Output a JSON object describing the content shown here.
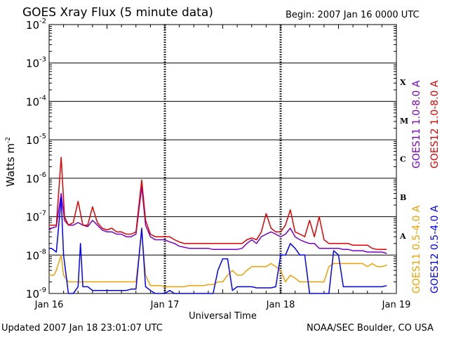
{
  "header": {
    "title": "GOES Xray Flux (5 minute data)",
    "begin": "Begin:  2007 Jan 16 0000 UTC"
  },
  "footer": {
    "updated": "Updated 2007 Jan 18 23:01:07 UTC",
    "credit": "NOAA/SEC Boulder, CO USA"
  },
  "chart_data": {
    "type": "line",
    "title": "GOES Xray Flux (5 minute data)",
    "xlabel": "Universal Time",
    "ylabel": "Watts m-2",
    "yscale": "log",
    "ylim": [
      1e-09,
      0.01
    ],
    "xlim": [
      0,
      72
    ],
    "x_unit": "hours since 2007 Jan 16 0000 UTC",
    "x_ticks": [
      {
        "x": 0,
        "label": "Jan 16"
      },
      {
        "x": 24,
        "label": "Jan 17"
      },
      {
        "x": 48,
        "label": "Jan 18"
      },
      {
        "x": 72,
        "label": "Jan 19"
      }
    ],
    "y_ticks": [
      {
        "exp": -2,
        "label": "10",
        "sup": "-2"
      },
      {
        "exp": -3,
        "label": "10",
        "sup": "-3"
      },
      {
        "exp": -4,
        "label": "10",
        "sup": "-4"
      },
      {
        "exp": -5,
        "label": "10",
        "sup": "-5"
      },
      {
        "exp": -6,
        "label": "10",
        "sup": "-6"
      },
      {
        "exp": -7,
        "label": "10",
        "sup": "-7"
      },
      {
        "exp": -8,
        "label": "10",
        "sup": "-8"
      },
      {
        "exp": -9,
        "label": "10",
        "sup": "-9"
      }
    ],
    "flare_classes": [
      {
        "label": "X",
        "exp": -3.5
      },
      {
        "label": "M",
        "exp": -4.5
      },
      {
        "label": "C",
        "exp": -5.5
      },
      {
        "label": "B",
        "exp": -6.5
      },
      {
        "label": "A",
        "exp": -7.5
      }
    ],
    "grid": true,
    "legend_placement": "right (vertical)",
    "series": [
      {
        "name": "GOES11 1.0-8.0 A",
        "color": "#7a00c8",
        "points": [
          [
            0,
            4.5e-08
          ],
          [
            0.5,
            5e-08
          ],
          [
            1.5,
            5.5e-08
          ],
          [
            2.5,
            4e-07
          ],
          [
            3.2,
            8e-08
          ],
          [
            4,
            6e-08
          ],
          [
            5,
            6e-08
          ],
          [
            6,
            7e-08
          ],
          [
            7,
            6e-08
          ],
          [
            8,
            5.5e-08
          ],
          [
            9,
            8e-08
          ],
          [
            10,
            6e-08
          ],
          [
            11,
            4.5e-08
          ],
          [
            12,
            4e-08
          ],
          [
            13,
            4e-08
          ],
          [
            14,
            3.5e-08
          ],
          [
            15,
            3.5e-08
          ],
          [
            16,
            3e-08
          ],
          [
            17,
            3e-08
          ],
          [
            18,
            3.5e-08
          ],
          [
            19.2,
            6e-07
          ],
          [
            20,
            6e-08
          ],
          [
            21,
            3e-08
          ],
          [
            22,
            2.5e-08
          ],
          [
            23,
            2.5e-08
          ],
          [
            24,
            2.5e-08
          ],
          [
            25,
            2.2e-08
          ],
          [
            26,
            2e-08
          ],
          [
            27,
            1.7e-08
          ],
          [
            28,
            1.6e-08
          ],
          [
            29,
            1.5e-08
          ],
          [
            30,
            1.5e-08
          ],
          [
            31,
            1.5e-08
          ],
          [
            32,
            1.5e-08
          ],
          [
            33,
            1.5e-08
          ],
          [
            34,
            1.4e-08
          ],
          [
            35,
            1.4e-08
          ],
          [
            36,
            1.4e-08
          ],
          [
            37,
            1.4e-08
          ],
          [
            38,
            1.4e-08
          ],
          [
            39,
            1.4e-08
          ],
          [
            40,
            1.5e-08
          ],
          [
            41,
            2e-08
          ],
          [
            42,
            2.5e-08
          ],
          [
            43,
            2e-08
          ],
          [
            44,
            3e-08
          ],
          [
            45,
            3.5e-08
          ],
          [
            46,
            4e-08
          ],
          [
            47,
            3.5e-08
          ],
          [
            48,
            3e-08
          ],
          [
            49,
            3.5e-08
          ],
          [
            50,
            5e-08
          ],
          [
            51,
            3e-08
          ],
          [
            52,
            2.5e-08
          ],
          [
            53,
            2.2e-08
          ],
          [
            54,
            2e-08
          ],
          [
            55,
            2e-08
          ],
          [
            56,
            1.5e-08
          ],
          [
            57,
            1.5e-08
          ],
          [
            58,
            1.5e-08
          ],
          [
            59,
            1.5e-08
          ],
          [
            60,
            1.5e-08
          ],
          [
            61,
            1.4e-08
          ],
          [
            62,
            1.4e-08
          ],
          [
            63,
            1.3e-08
          ],
          [
            64,
            1.3e-08
          ],
          [
            65,
            1.3e-08
          ],
          [
            66,
            1.2e-08
          ],
          [
            67,
            1.2e-08
          ],
          [
            68,
            1.2e-08
          ],
          [
            69,
            1.2e-08
          ],
          [
            70,
            1.1e-08
          ]
        ]
      },
      {
        "name": "GOES12 1.0-8.0 A",
        "color": "#e00000",
        "points": [
          [
            0,
            6e-08
          ],
          [
            0.5,
            6e-08
          ],
          [
            1.5,
            6e-08
          ],
          [
            2.5,
            3.5e-06
          ],
          [
            3.2,
            1e-07
          ],
          [
            4,
            6e-08
          ],
          [
            5,
            7e-08
          ],
          [
            6,
            2.5e-07
          ],
          [
            7,
            6e-08
          ],
          [
            8,
            6e-08
          ],
          [
            9,
            1.8e-07
          ],
          [
            10,
            7e-08
          ],
          [
            11,
            5e-08
          ],
          [
            12,
            4.5e-08
          ],
          [
            13,
            5e-08
          ],
          [
            14,
            4e-08
          ],
          [
            15,
            4e-08
          ],
          [
            16,
            3.5e-08
          ],
          [
            17,
            3.5e-08
          ],
          [
            18,
            4e-08
          ],
          [
            19.2,
            9e-07
          ],
          [
            20,
            8e-08
          ],
          [
            21,
            3.5e-08
          ],
          [
            22,
            3e-08
          ],
          [
            23,
            3e-08
          ],
          [
            24,
            3e-08
          ],
          [
            25,
            3e-08
          ],
          [
            26,
            2.5e-08
          ],
          [
            27,
            2.2e-08
          ],
          [
            28,
            2e-08
          ],
          [
            29,
            2e-08
          ],
          [
            30,
            2e-08
          ],
          [
            31,
            2e-08
          ],
          [
            32,
            2e-08
          ],
          [
            33,
            2e-08
          ],
          [
            34,
            2e-08
          ],
          [
            35,
            2e-08
          ],
          [
            36,
            2e-08
          ],
          [
            37,
            2e-08
          ],
          [
            38,
            2e-08
          ],
          [
            39,
            2e-08
          ],
          [
            40,
            2e-08
          ],
          [
            41,
            2.5e-08
          ],
          [
            42,
            2.8e-08
          ],
          [
            43,
            2.5e-08
          ],
          [
            44,
            4e-08
          ],
          [
            45,
            1.2e-07
          ],
          [
            46,
            5e-08
          ],
          [
            47,
            4e-08
          ],
          [
            48,
            4e-08
          ],
          [
            49,
            6e-08
          ],
          [
            50,
            1.5e-07
          ],
          [
            51,
            4e-08
          ],
          [
            52,
            3.5e-08
          ],
          [
            53,
            3e-08
          ],
          [
            54,
            8e-08
          ],
          [
            55,
            3e-08
          ],
          [
            56,
            1e-07
          ],
          [
            57,
            2.5e-08
          ],
          [
            58,
            2e-08
          ],
          [
            59,
            2e-08
          ],
          [
            60,
            2e-08
          ],
          [
            61,
            2e-08
          ],
          [
            62,
            2e-08
          ],
          [
            63,
            1.8e-08
          ],
          [
            64,
            1.8e-08
          ],
          [
            65,
            1.8e-08
          ],
          [
            66,
            1.8e-08
          ],
          [
            67,
            1.5e-08
          ],
          [
            68,
            1.4e-08
          ],
          [
            69,
            1.4e-08
          ],
          [
            70,
            1.4e-08
          ]
        ]
      },
      {
        "name": "GOES11 0.5-4.0 A",
        "color": "#f0a000",
        "points": [
          [
            0,
            3e-09
          ],
          [
            1,
            3e-09
          ],
          [
            1.5,
            4e-09
          ],
          [
            2.5,
            1e-08
          ],
          [
            3,
            3e-09
          ],
          [
            4,
            2e-09
          ],
          [
            5,
            2e-09
          ],
          [
            6,
            2e-09
          ],
          [
            7,
            2e-09
          ],
          [
            8,
            2e-09
          ],
          [
            9,
            2e-09
          ],
          [
            10,
            2e-09
          ],
          [
            11,
            2e-09
          ],
          [
            12,
            2e-09
          ],
          [
            13,
            2e-09
          ],
          [
            14,
            2e-09
          ],
          [
            15,
            2e-09
          ],
          [
            16,
            2e-09
          ],
          [
            17,
            2e-09
          ],
          [
            18,
            2e-09
          ],
          [
            19.2,
            4e-08
          ],
          [
            20,
            3e-09
          ],
          [
            21,
            1.6e-09
          ],
          [
            22,
            1.6e-09
          ],
          [
            23,
            1.6e-09
          ],
          [
            24,
            1.5e-09
          ],
          [
            25,
            1.5e-09
          ],
          [
            26,
            1.5e-09
          ],
          [
            27,
            1.5e-09
          ],
          [
            28,
            1.5e-09
          ],
          [
            29,
            1.6e-09
          ],
          [
            30,
            1.6e-09
          ],
          [
            31,
            1.6e-09
          ],
          [
            32,
            1.6e-09
          ],
          [
            33,
            1.7e-09
          ],
          [
            34,
            1.7e-09
          ],
          [
            35,
            2e-09
          ],
          [
            36,
            2e-09
          ],
          [
            37,
            3e-09
          ],
          [
            38,
            4e-09
          ],
          [
            39,
            3e-09
          ],
          [
            40,
            3e-09
          ],
          [
            41,
            4e-09
          ],
          [
            42,
            5e-09
          ],
          [
            43,
            5e-09
          ],
          [
            44,
            5e-09
          ],
          [
            45,
            5e-09
          ],
          [
            46,
            6e-09
          ],
          [
            47,
            5e-09
          ],
          [
            48,
            4e-09
          ],
          [
            49,
            2e-09
          ],
          [
            50,
            3e-09
          ],
          [
            51,
            2.5e-09
          ],
          [
            52,
            2e-09
          ],
          [
            53,
            2e-09
          ],
          [
            54,
            2e-09
          ],
          [
            55,
            2e-09
          ],
          [
            56,
            2e-09
          ],
          [
            57,
            2e-09
          ],
          [
            58,
            5e-09
          ],
          [
            59,
            6e-09
          ],
          [
            60,
            6e-09
          ],
          [
            61,
            6e-09
          ],
          [
            62,
            6e-09
          ],
          [
            63,
            6e-09
          ],
          [
            64,
            6e-09
          ],
          [
            65,
            6e-09
          ],
          [
            66,
            5e-09
          ],
          [
            67,
            6e-09
          ],
          [
            68,
            5e-09
          ],
          [
            69,
            5e-09
          ],
          [
            70,
            5.5e-09
          ]
        ]
      },
      {
        "name": "GOES12 0.5-4.0 A",
        "color": "#0000ff",
        "points": [
          [
            0,
            1.5e-08
          ],
          [
            0.5,
            1.5e-08
          ],
          [
            1.5,
            1.2e-08
          ],
          [
            2.5,
            3e-07
          ],
          [
            3,
            1e-08
          ],
          [
            4,
            1e-09
          ],
          [
            5,
            1e-09
          ],
          [
            6,
            1.5e-09
          ],
          [
            6.5,
            2e-08
          ],
          [
            7,
            1.5e-09
          ],
          [
            8,
            1.5e-09
          ],
          [
            9,
            1.2e-09
          ],
          [
            10,
            1.2e-09
          ],
          [
            11,
            1.2e-09
          ],
          [
            12,
            1.2e-09
          ],
          [
            13,
            1.2e-09
          ],
          [
            14,
            1.2e-09
          ],
          [
            15,
            1.2e-09
          ],
          [
            16,
            1.2e-09
          ],
          [
            17,
            1.3e-09
          ],
          [
            18,
            1.3e-09
          ],
          [
            19.2,
            5e-08
          ],
          [
            20,
            1.5e-09
          ],
          [
            21,
            1.2e-09
          ],
          [
            22,
            1e-09
          ],
          [
            23,
            1e-09
          ],
          [
            24,
            1e-09
          ],
          [
            25,
            1.2e-09
          ],
          [
            26,
            1e-09
          ],
          [
            27,
            1e-09
          ],
          [
            28,
            1e-09
          ],
          [
            29,
            1e-09
          ],
          [
            30,
            1e-09
          ],
          [
            31,
            1e-09
          ],
          [
            32,
            1e-09
          ],
          [
            33,
            1e-09
          ],
          [
            34,
            1e-09
          ],
          [
            35,
            4e-09
          ],
          [
            36,
            8e-09
          ],
          [
            37,
            8e-09
          ],
          [
            38,
            1.2e-09
          ],
          [
            39,
            1.5e-09
          ],
          [
            40,
            1.5e-09
          ],
          [
            41,
            1.5e-09
          ],
          [
            42,
            1.5e-09
          ],
          [
            43,
            1.4e-09
          ],
          [
            44,
            1.4e-09
          ],
          [
            45,
            1.4e-09
          ],
          [
            46,
            1.4e-09
          ],
          [
            47,
            1.5e-09
          ],
          [
            48,
            1e-08
          ],
          [
            49,
            1e-08
          ],
          [
            50,
            2e-08
          ],
          [
            51,
            1.5e-08
          ],
          [
            52,
            1e-08
          ],
          [
            53,
            1e-08
          ],
          [
            54,
            1e-09
          ],
          [
            55,
            1e-09
          ],
          [
            56,
            1e-09
          ],
          [
            57,
            1e-09
          ],
          [
            58,
            1e-09
          ],
          [
            59,
            1.3e-08
          ],
          [
            60,
            1e-08
          ],
          [
            61,
            1.5e-09
          ],
          [
            62,
            1.5e-09
          ],
          [
            63,
            1.5e-09
          ],
          [
            64,
            1.5e-09
          ],
          [
            65,
            1.5e-09
          ],
          [
            66,
            1.5e-09
          ],
          [
            67,
            1.5e-09
          ],
          [
            68,
            1.5e-09
          ],
          [
            69,
            1.5e-09
          ],
          [
            70,
            1.6e-09
          ]
        ]
      }
    ]
  }
}
